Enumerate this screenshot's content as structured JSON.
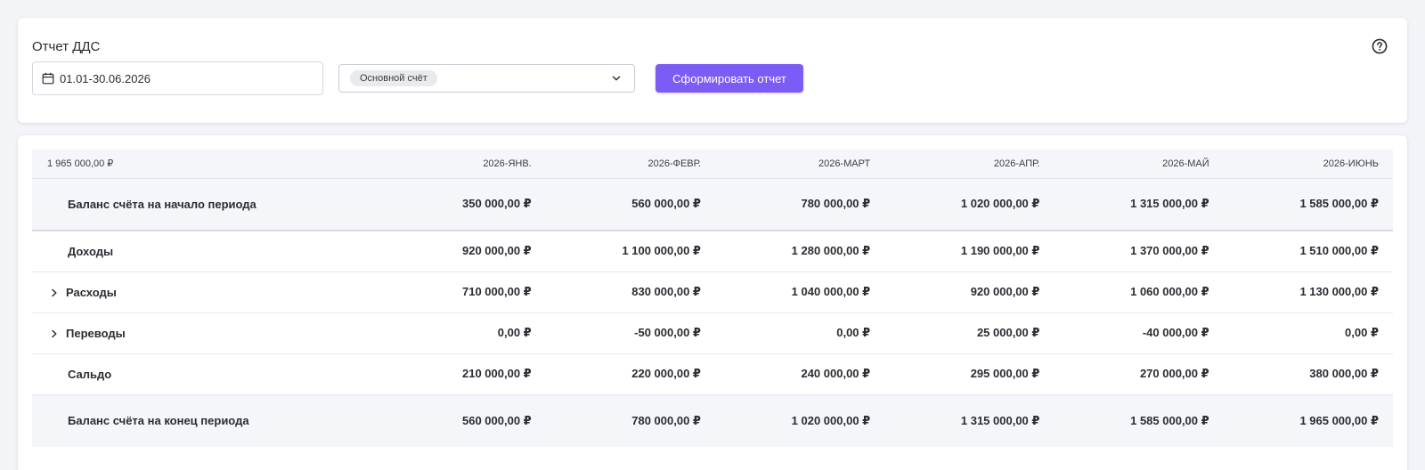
{
  "header": {
    "title": "Отчет ДДС",
    "date_range": "01.01-30.06.2026",
    "account_tag": "Основной счёт",
    "submit_label": "Сформировать отчет"
  },
  "icons": {
    "help": "help-circle-icon",
    "calendar": "calendar-icon",
    "dropdown": "chevron-down-icon",
    "expand": "chevron-right-icon"
  },
  "colors": {
    "accent": "#7b5cf5",
    "background": "#f3f4f8",
    "row_highlight": "#f5f6f9"
  },
  "table": {
    "total_header": "1 965 000,00 ₽",
    "months": [
      "2026-ЯНВ.",
      "2026-ФЕВР.",
      "2026-МАРТ",
      "2026-АПР.",
      "2026-МАЙ",
      "2026-ИЮНЬ"
    ],
    "rows": [
      {
        "label": "Баланс счёта на начало периода",
        "values": [
          "350 000,00 ₽",
          "560 000,00 ₽",
          "780 000,00 ₽",
          "1 020 000,00 ₽",
          "1 315 000,00 ₽",
          "1 585 000,00 ₽"
        ]
      },
      {
        "label": "Доходы",
        "values": [
          "920 000,00 ₽",
          "1 100 000,00 ₽",
          "1 280 000,00 ₽",
          "1 190 000,00 ₽",
          "1 370 000,00 ₽",
          "1 510 000,00 ₽"
        ]
      },
      {
        "label": "Расходы",
        "values": [
          "710 000,00 ₽",
          "830 000,00 ₽",
          "1 040 000,00 ₽",
          "920 000,00 ₽",
          "1 060 000,00 ₽",
          "1 130 000,00 ₽"
        ]
      },
      {
        "label": "Переводы",
        "values": [
          "0,00 ₽",
          "-50 000,00 ₽",
          "0,00 ₽",
          "25 000,00 ₽",
          "-40 000,00 ₽",
          "0,00 ₽"
        ]
      },
      {
        "label": "Сальдо",
        "values": [
          "210 000,00 ₽",
          "220 000,00 ₽",
          "240 000,00 ₽",
          "295 000,00 ₽",
          "270 000,00 ₽",
          "380 000,00 ₽"
        ]
      },
      {
        "label": "Баланс счёта на конец периода",
        "values": [
          "560 000,00 ₽",
          "780 000,00 ₽",
          "1 020 000,00 ₽",
          "1 315 000,00 ₽",
          "1 585 000,00 ₽",
          "1 965 000,00 ₽"
        ]
      }
    ]
  }
}
